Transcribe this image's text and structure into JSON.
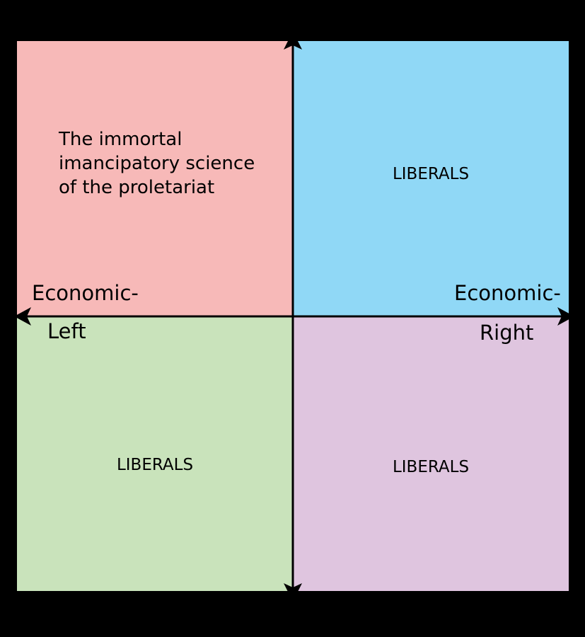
{
  "compass": {
    "colors": {
      "top_left": "#f7b9b8",
      "top_right": "#90d8f6",
      "bottom_left": "#c9e3bb",
      "bottom_right": "#dfc5df",
      "background": "#000000",
      "axis": "#000000"
    },
    "quadrants": {
      "top_left": {
        "label": "The immortal\nimancipatory science\nof the proletariat"
      },
      "top_right": {
        "label": "LIBERALS"
      },
      "bottom_left": {
        "label": "LIBERALS"
      },
      "bottom_right": {
        "label": "LIBERALS"
      }
    },
    "axes": {
      "left_label_line1": "Economic-",
      "left_label_line2": "Left",
      "right_label_line1": "Economic-",
      "right_label_line2": "Right"
    }
  }
}
